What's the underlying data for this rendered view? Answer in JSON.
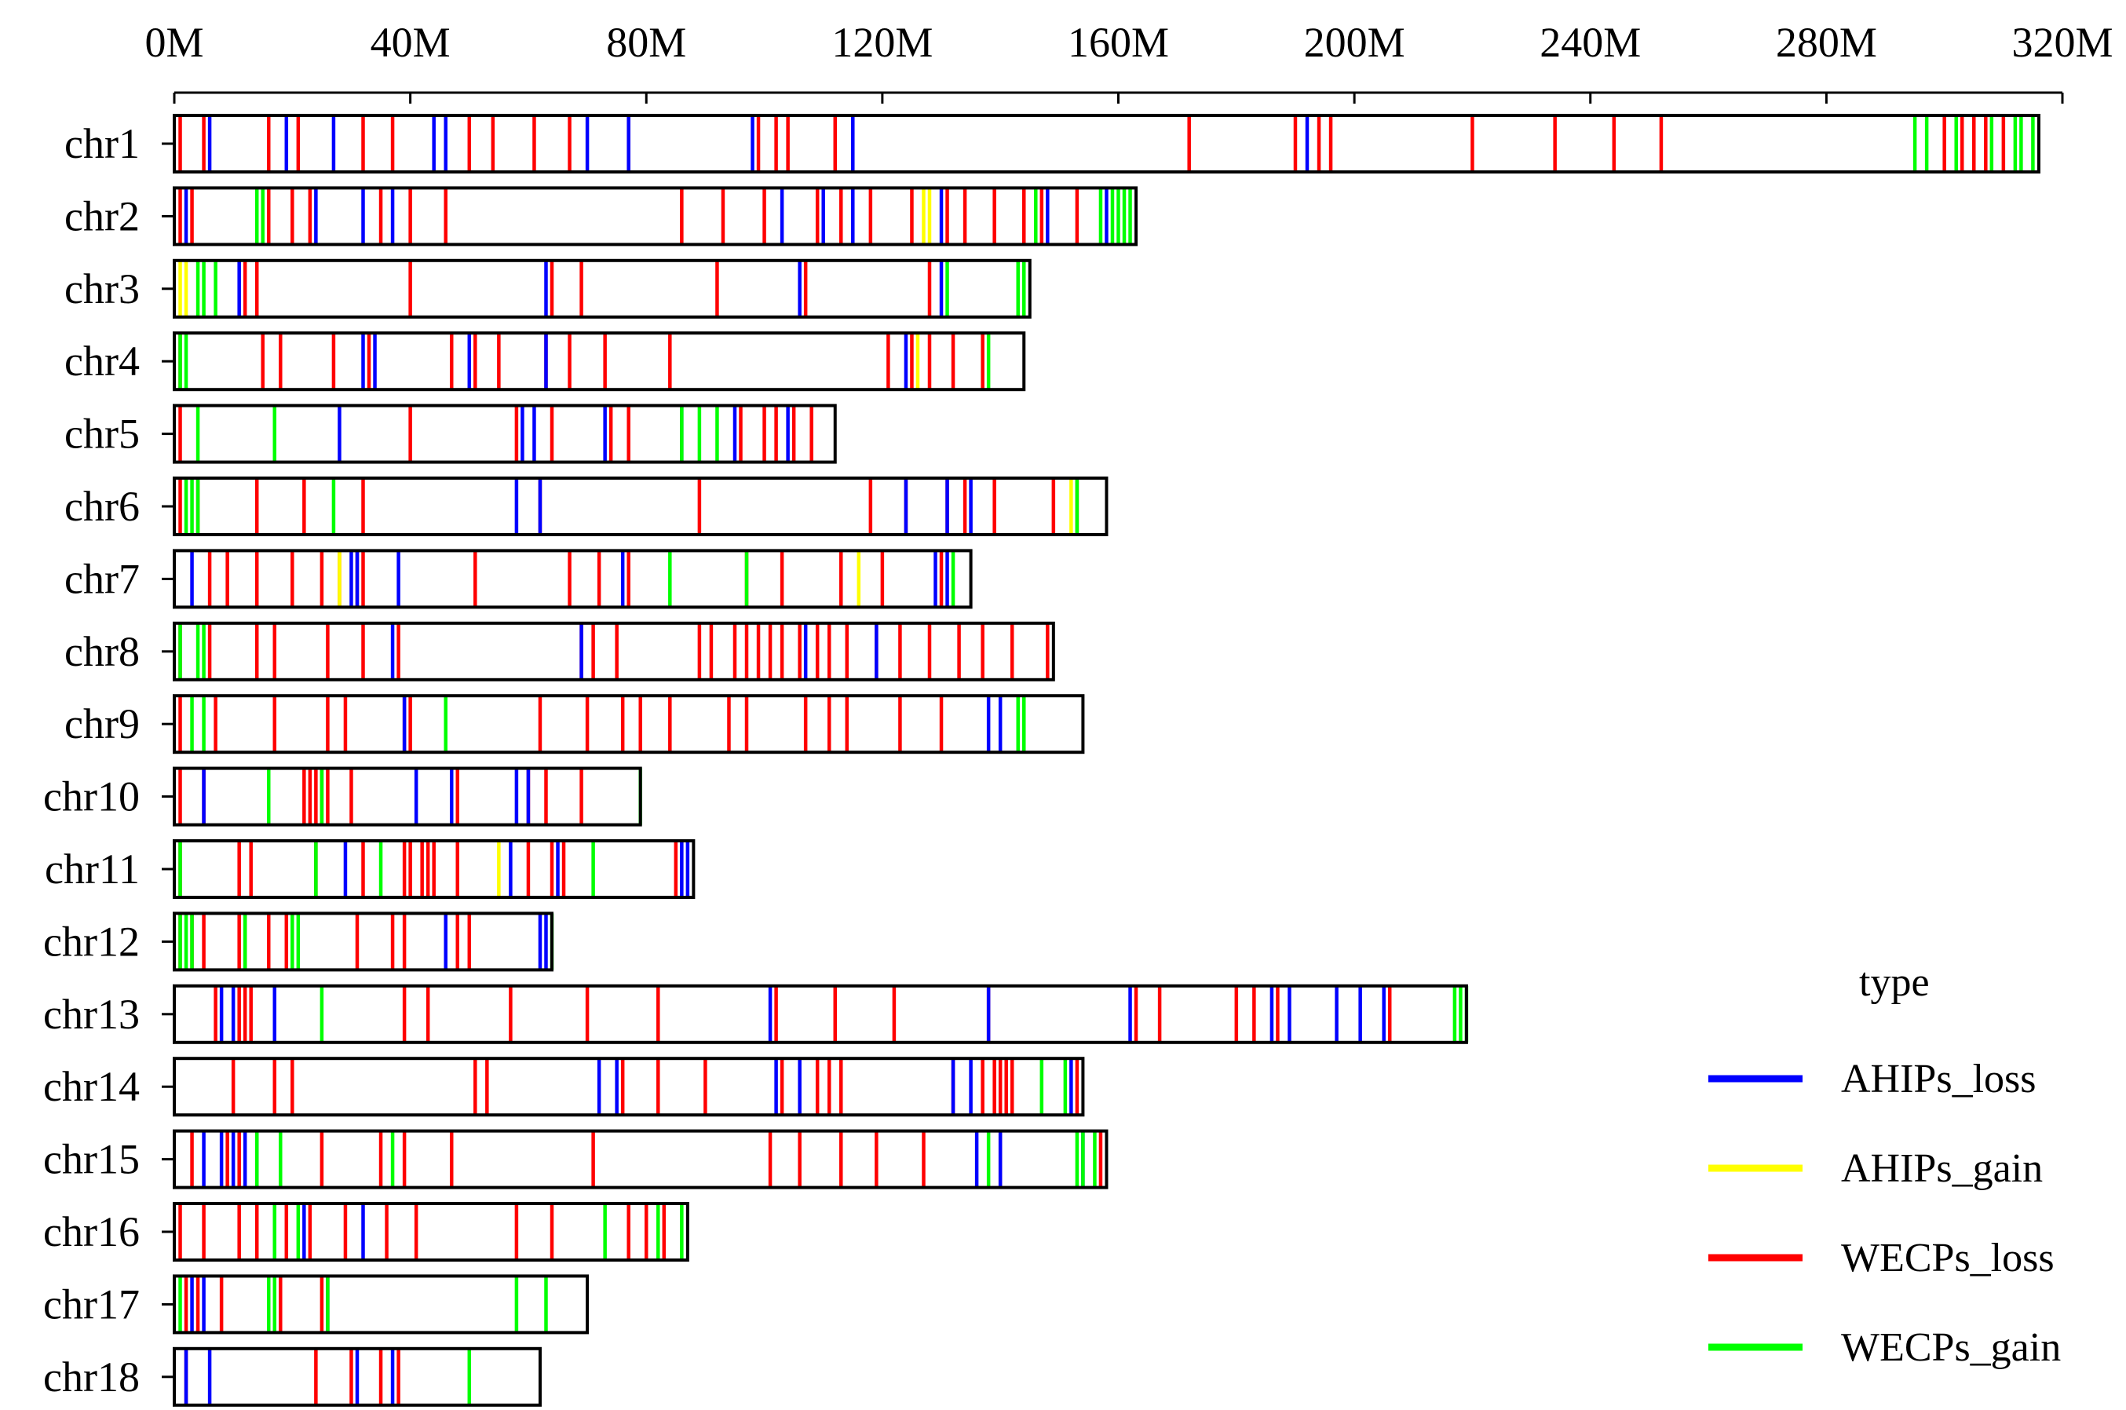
{
  "chart_data": {
    "type": "heatmap",
    "title": "",
    "xlabel": "",
    "ylabel": "",
    "xlim": [
      0,
      320
    ],
    "x_unit": "M",
    "x_ticks": [
      {
        "value": 0,
        "label": "0M"
      },
      {
        "value": 40,
        "label": "40M"
      },
      {
        "value": 80,
        "label": "80M"
      },
      {
        "value": 120,
        "label": "120M"
      },
      {
        "value": 160,
        "label": "160M"
      },
      {
        "value": 200,
        "label": "200M"
      },
      {
        "value": 240,
        "label": "240M"
      },
      {
        "value": 280,
        "label": "280M"
      },
      {
        "value": 320,
        "label": "320M"
      }
    ],
    "legend": {
      "title": "type",
      "placement": "bottom-right",
      "items": [
        {
          "key": "AHIPs_loss",
          "label": "AHIPs_loss",
          "color": "#0000ff"
        },
        {
          "key": "AHIPs_gain",
          "label": "AHIPs_gain",
          "color": "#ffff00"
        },
        {
          "key": "WECPs_loss",
          "label": "WECPs_loss",
          "color": "#ff0000"
        },
        {
          "key": "WECPs_gain",
          "label": "WECPs_gain",
          "color": "#00ff00"
        }
      ]
    },
    "chromosomes": [
      {
        "name": "chr1",
        "length": 316,
        "AHIPs_loss": [
          6,
          19,
          27,
          44,
          46,
          70,
          77,
          98,
          115,
          192
        ],
        "AHIPs_gain": [],
        "WECPs_loss": [
          1,
          5,
          16,
          21,
          32,
          37,
          50,
          54,
          61,
          67,
          77,
          99,
          102,
          104,
          112,
          172,
          190,
          194,
          196,
          220,
          234,
          244,
          252,
          300,
          303,
          305,
          307,
          310
        ],
        "WECPs_gain": [
          295,
          297,
          302,
          308,
          312,
          313,
          315
        ]
      },
      {
        "name": "chr2",
        "length": 163,
        "AHIPs_loss": [
          2,
          24,
          32,
          37,
          103,
          110,
          115,
          130,
          148,
          158
        ],
        "AHIPs_gain": [
          127,
          128
        ],
        "WECPs_loss": [
          1,
          3,
          16,
          20,
          23,
          35,
          40,
          46,
          86,
          93,
          100,
          109,
          113,
          118,
          125,
          131,
          134,
          139,
          144,
          147,
          153
        ],
        "WECPs_gain": [
          14,
          15,
          146,
          157,
          159,
          160,
          161,
          162
        ]
      },
      {
        "name": "chr3",
        "length": 145,
        "AHIPs_loss": [
          11,
          63,
          106,
          130
        ],
        "AHIPs_gain": [
          1,
          2
        ],
        "WECPs_loss": [
          12,
          14,
          40,
          64,
          69,
          92,
          107,
          128
        ],
        "WECPs_gain": [
          4,
          5,
          7,
          131,
          143,
          144
        ]
      },
      {
        "name": "chr4",
        "length": 144,
        "AHIPs_loss": [
          32,
          34,
          50,
          63,
          124
        ],
        "AHIPs_gain": [
          126
        ],
        "WECPs_loss": [
          1,
          15,
          18,
          27,
          33,
          47,
          51,
          55,
          63,
          67,
          73,
          84,
          121,
          125,
          128,
          132,
          137
        ],
        "WECPs_gain": [
          1,
          2,
          138
        ]
      },
      {
        "name": "chr5",
        "length": 112,
        "AHIPs_loss": [
          28,
          59,
          61,
          73,
          86,
          95,
          104
        ],
        "AHIPs_gain": [],
        "WECPs_loss": [
          1,
          40,
          58,
          64,
          74,
          77,
          96,
          100,
          102,
          105,
          108
        ],
        "WECPs_gain": [
          4,
          17,
          86,
          89,
          92
        ]
      },
      {
        "name": "chr6",
        "length": 158,
        "AHIPs_loss": [
          58,
          62,
          124,
          131,
          135
        ],
        "AHIPs_gain": [
          152
        ],
        "WECPs_loss": [
          1,
          4,
          14,
          22,
          32,
          62,
          89,
          118,
          124,
          131,
          134,
          139,
          149,
          153
        ],
        "WECPs_gain": [
          2,
          3,
          4,
          27,
          153
        ]
      },
      {
        "name": "chr7",
        "length": 135,
        "AHIPs_loss": [
          3,
          30,
          31,
          38,
          76,
          129,
          131
        ],
        "AHIPs_gain": [
          28,
          116
        ],
        "WECPs_loss": [
          6,
          9,
          14,
          20,
          25,
          28,
          31,
          32,
          51,
          67,
          72,
          77,
          97,
          103,
          113,
          120,
          130
        ],
        "WECPs_gain": [
          84,
          97,
          132
        ]
      },
      {
        "name": "chr8",
        "length": 149,
        "AHIPs_loss": [
          37,
          69,
          107,
          119
        ],
        "AHIPs_gain": [],
        "WECPs_loss": [
          1,
          6,
          14,
          17,
          26,
          32,
          38,
          69,
          71,
          75,
          89,
          91,
          95,
          97,
          99,
          101,
          103,
          106,
          109,
          111,
          114,
          119,
          123,
          128,
          133,
          137,
          142,
          148
        ],
        "WECPs_gain": [
          1,
          4,
          5
        ]
      },
      {
        "name": "chr9",
        "length": 154,
        "AHIPs_loss": [
          39,
          138,
          140
        ],
        "AHIPs_gain": [],
        "WECPs_loss": [
          1,
          7,
          17,
          26,
          29,
          39,
          40,
          62,
          70,
          76,
          79,
          84,
          94,
          97,
          107,
          111,
          114,
          123,
          130,
          144
        ],
        "WECPs_gain": [
          3,
          5,
          46,
          143,
          144
        ]
      },
      {
        "name": "chr10",
        "length": 79,
        "AHIPs_loss": [
          5,
          41,
          47,
          58,
          60
        ],
        "AHIPs_gain": [],
        "WECPs_loss": [
          1,
          5,
          22,
          23,
          24,
          25,
          26,
          30,
          48,
          60,
          63,
          69
        ],
        "WECPs_gain": [
          16,
          25,
          79
        ]
      },
      {
        "name": "chr11",
        "length": 88,
        "AHIPs_loss": [
          29,
          57,
          65,
          86,
          87
        ],
        "AHIPs_gain": [
          55
        ],
        "WECPs_loss": [
          1,
          11,
          13,
          24,
          32,
          39,
          40,
          42,
          43,
          44,
          48,
          60,
          64,
          66,
          85
        ],
        "WECPs_gain": [
          1,
          24,
          35,
          71
        ]
      },
      {
        "name": "chr12",
        "length": 64,
        "AHIPs_loss": [
          46,
          62,
          63
        ],
        "AHIPs_gain": [],
        "WECPs_loss": [
          1,
          3,
          5,
          11,
          12,
          16,
          19,
          31,
          37,
          39,
          48,
          50
        ],
        "WECPs_gain": [
          1,
          2,
          3,
          12,
          20,
          21,
          64
        ]
      },
      {
        "name": "chr13",
        "length": 219,
        "AHIPs_loss": [
          8,
          10,
          17,
          101,
          138,
          162,
          186,
          189,
          197,
          201,
          205
        ],
        "AHIPs_gain": [],
        "WECPs_loss": [
          7,
          11,
          12,
          13,
          39,
          43,
          57,
          70,
          82,
          102,
          112,
          122,
          138,
          163,
          167,
          180,
          183,
          187,
          206
        ],
        "WECPs_gain": [
          25,
          217,
          218,
          219
        ]
      },
      {
        "name": "chr14",
        "length": 154,
        "AHIPs_loss": [
          72,
          75,
          102,
          106,
          132,
          135,
          152
        ],
        "AHIPs_gain": [],
        "WECPs_loss": [
          10,
          17,
          20,
          51,
          53,
          76,
          82,
          90,
          103,
          109,
          111,
          113,
          132,
          137,
          139,
          140,
          141,
          142,
          153
        ],
        "WECPs_gain": [
          147,
          151
        ]
      },
      {
        "name": "chr15",
        "length": 158,
        "AHIPs_loss": [
          5,
          8,
          10,
          12,
          14,
          136,
          140,
          154
        ],
        "AHIPs_gain": [],
        "WECPs_loss": [
          3,
          9,
          11,
          25,
          35,
          39,
          47,
          71,
          101,
          106,
          113,
          119,
          127,
          140,
          157
        ],
        "WECPs_gain": [
          14,
          18,
          37,
          138,
          153,
          154,
          156
        ]
      },
      {
        "name": "chr16",
        "length": 87,
        "AHIPs_loss": [
          17,
          22,
          32
        ],
        "AHIPs_gain": [],
        "WECPs_loss": [
          1,
          5,
          11,
          14,
          19,
          23,
          29,
          36,
          41,
          58,
          64,
          77,
          80,
          83
        ],
        "WECPs_gain": [
          17,
          21,
          73,
          82,
          86
        ]
      },
      {
        "name": "chr17",
        "length": 70,
        "AHIPs_loss": [
          3,
          5,
          26
        ],
        "AHIPs_gain": [],
        "WECPs_loss": [
          2,
          4,
          8,
          18,
          25
        ],
        "WECPs_gain": [
          1,
          16,
          17,
          26,
          58,
          63
        ]
      },
      {
        "name": "chr18",
        "length": 62,
        "AHIPs_loss": [
          2,
          6,
          31,
          37
        ],
        "AHIPs_gain": [],
        "WECPs_loss": [
          2,
          24,
          30,
          35,
          38
        ],
        "WECPs_gain": [
          50
        ]
      }
    ]
  }
}
